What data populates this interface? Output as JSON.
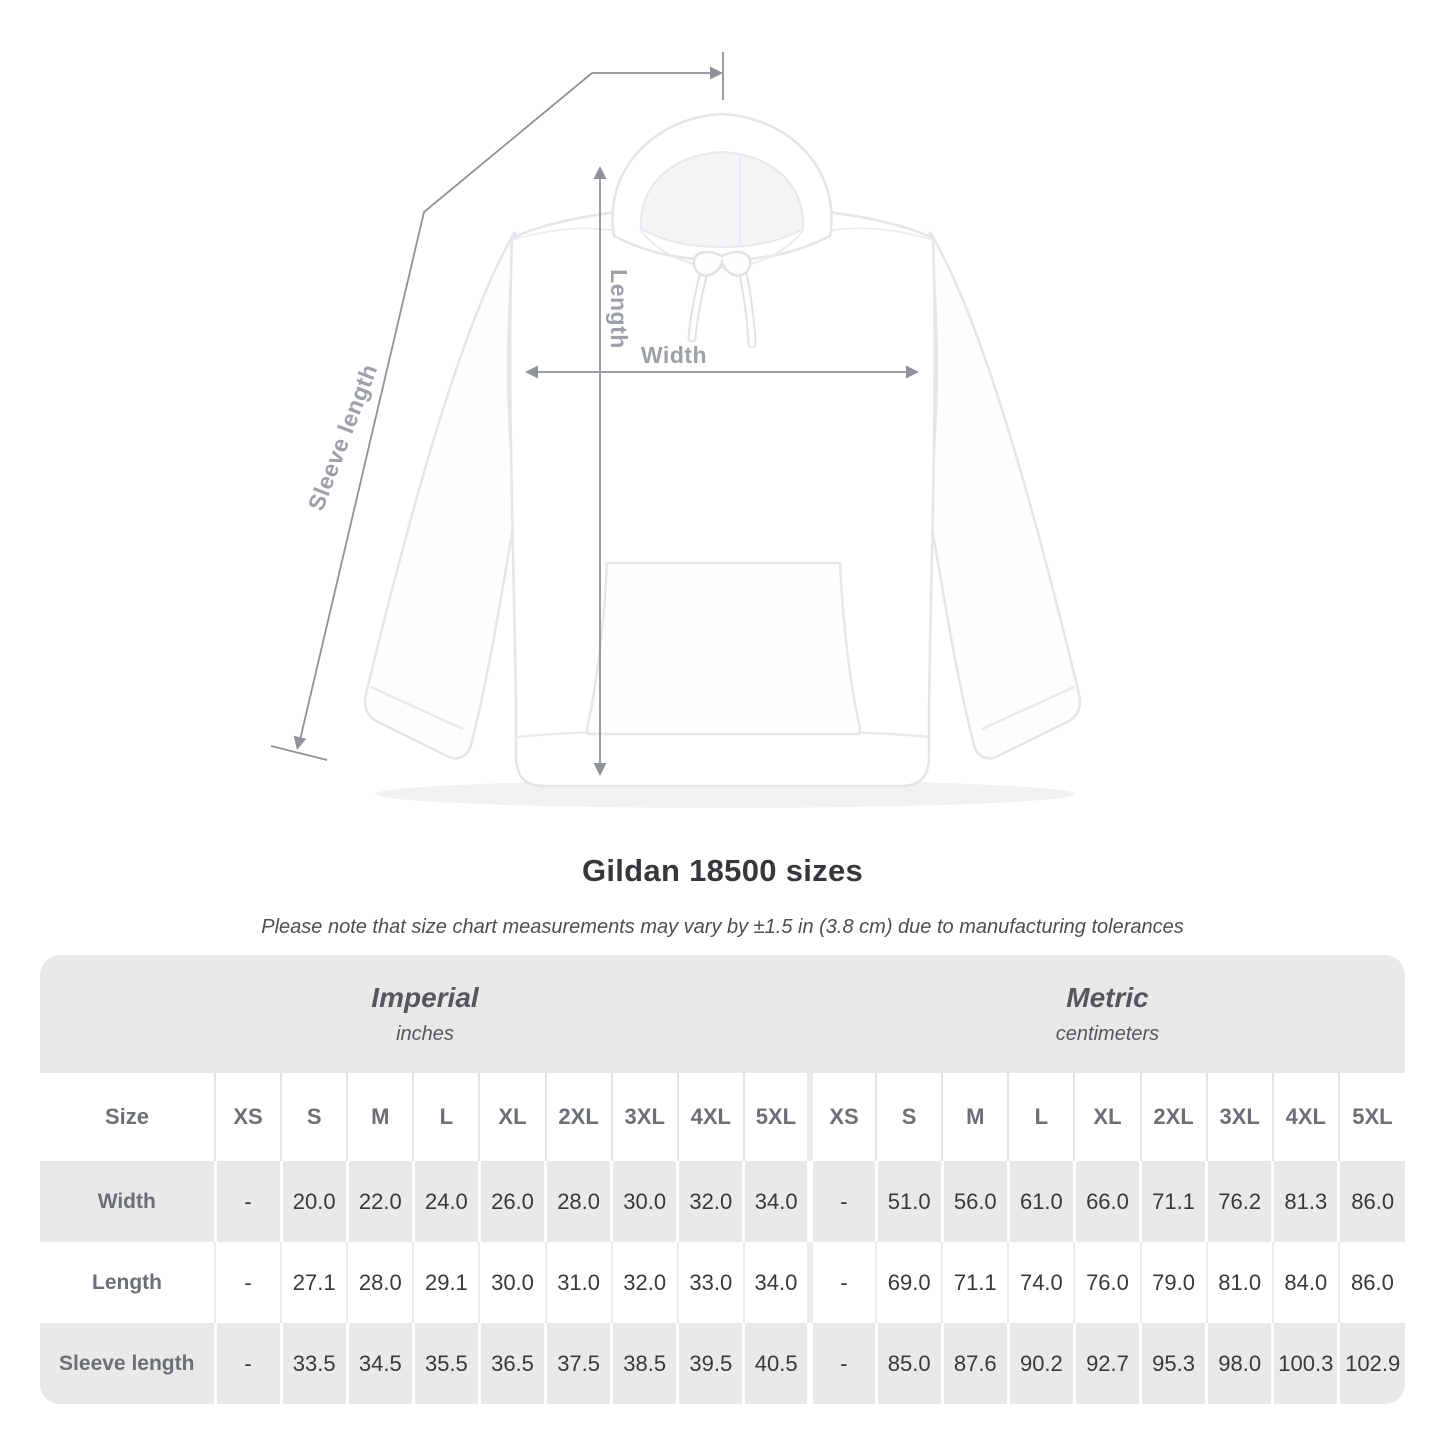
{
  "title": "Gildan 18500 sizes",
  "subtitle": "Please note that size chart measurements may vary by ±1.5 in (3.8 cm) due to manufacturing tolerances",
  "diagram": {
    "labels": {
      "length": "Length",
      "width": "Width",
      "sleeve": "Sleeve length"
    }
  },
  "colors": {
    "band_gray": "#e9e9e9",
    "header_text": "#6b7076",
    "value_text": "#37393d",
    "dimension_line": "#8d9399",
    "dimension_label": "#9ba1a7",
    "garment_outline": "#e3e5e8"
  },
  "table": {
    "sections": [
      {
        "label": "Imperial",
        "sublabel": "inches"
      },
      {
        "label": "Metric",
        "sublabel": "centimeters"
      }
    ],
    "size_header": "Size",
    "sizes": [
      "XS",
      "S",
      "M",
      "L",
      "XL",
      "2XL",
      "3XL",
      "4XL",
      "5XL"
    ],
    "rows": [
      {
        "label": "Width",
        "imperial": [
          "-",
          "20.0",
          "22.0",
          "24.0",
          "26.0",
          "28.0",
          "30.0",
          "32.0",
          "34.0"
        ],
        "metric": [
          "-",
          "51.0",
          "56.0",
          "61.0",
          "66.0",
          "71.1",
          "76.2",
          "81.3",
          "86.0"
        ]
      },
      {
        "label": "Length",
        "imperial": [
          "-",
          "27.1",
          "28.0",
          "29.1",
          "30.0",
          "31.0",
          "32.0",
          "33.0",
          "34.0"
        ],
        "metric": [
          "-",
          "69.0",
          "71.1",
          "74.0",
          "76.0",
          "79.0",
          "81.0",
          "84.0",
          "86.0"
        ]
      },
      {
        "label": "Sleeve length",
        "imperial": [
          "-",
          "33.5",
          "34.5",
          "35.5",
          "36.5",
          "37.5",
          "38.5",
          "39.5",
          "40.5"
        ],
        "metric": [
          "-",
          "85.0",
          "87.6",
          "90.2",
          "92.7",
          "95.3",
          "98.0",
          "100.3",
          "102.9"
        ]
      }
    ]
  }
}
